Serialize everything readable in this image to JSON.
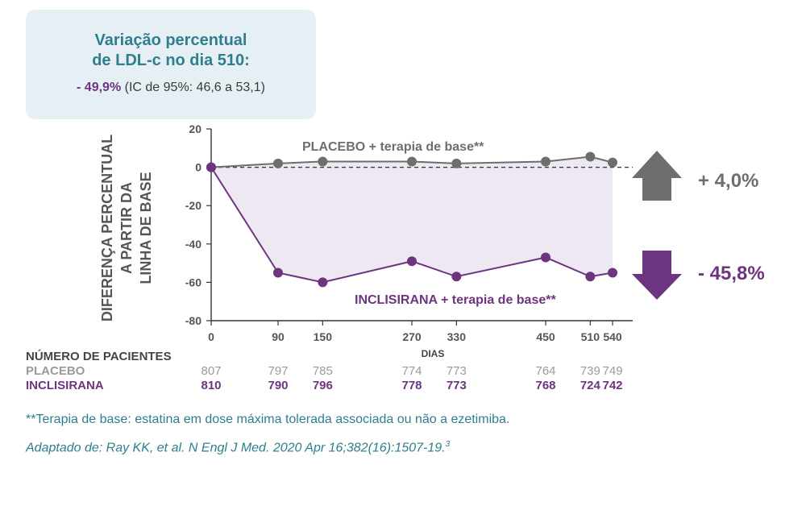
{
  "info_box": {
    "title_line1": "Variação percentual",
    "title_line2": "de LDL-c no dia 510:",
    "result_value": "- 49,9%",
    "result_ci": "(IC de 95%: 46,6 a 53,1)"
  },
  "chart_data": {
    "type": "line",
    "ylabel_lines": [
      "DIFERENÇA PERCENTUAL",
      "A PARTIR DA",
      "LINHA DE BASE"
    ],
    "xlabel": "DIAS",
    "ylim": [
      -80,
      20
    ],
    "yticks": [
      20,
      0,
      -20,
      -40,
      -60,
      -80
    ],
    "x": [
      0,
      90,
      150,
      270,
      330,
      450,
      510,
      540
    ],
    "series": [
      {
        "name": "PLACEBO + terapia de base**",
        "color": "#6e6e6e",
        "values": [
          0,
          2,
          3,
          3,
          2,
          3,
          5.5,
          2.5
        ],
        "change_label": "+ 4,0%",
        "direction": "up"
      },
      {
        "name": "INCLISIRANA + terapia de base**",
        "color": "#6d3580",
        "values": [
          0,
          -55,
          -60,
          -49,
          -57,
          -47,
          -57,
          -55
        ],
        "change_label": "- 45,8%",
        "direction": "down"
      }
    ]
  },
  "patients_table": {
    "header": "NÚMERO DE PACIENTES",
    "rows": [
      {
        "label": "PLACEBO",
        "color": "#9a9a9a",
        "bold": false,
        "values": [
          "807",
          "797",
          "785",
          "774",
          "773",
          "764",
          "739",
          "749"
        ]
      },
      {
        "label": "INCLISIRANA",
        "color": "#6d3580",
        "bold": true,
        "values": [
          "810",
          "790",
          "796",
          "778",
          "773",
          "768",
          "724",
          "742"
        ]
      }
    ]
  },
  "footnote": "**Terapia de base: estatina em dose máxima tolerada associada ou não a ezetimiba.",
  "source_text": "Adaptado de: Ray KK, et al. N Engl J Med. 2020 Apr 16;382(16):1507-19.",
  "source_ref": "3"
}
